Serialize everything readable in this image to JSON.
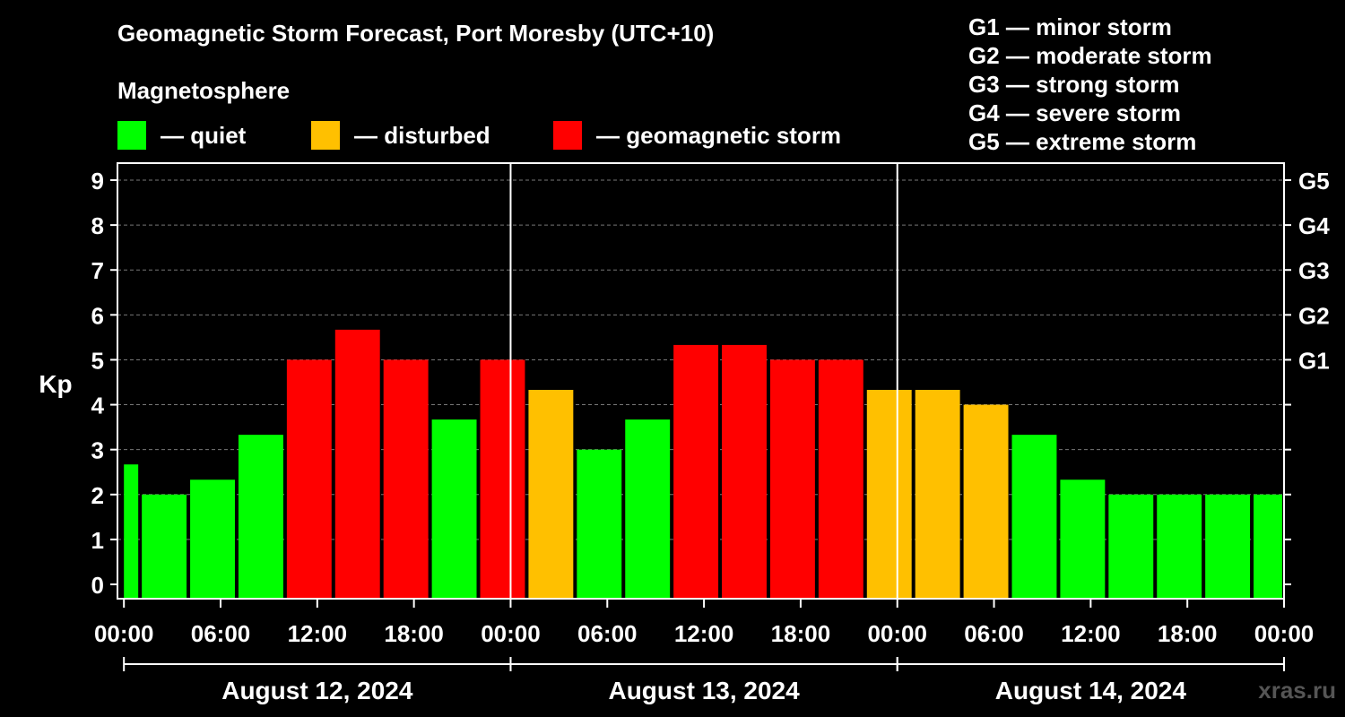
{
  "title": "Geomagnetic Storm Forecast, Port Moresby (UTC+10)",
  "legend": {
    "heading": "Magnetosphere",
    "items": [
      {
        "label": "— quiet",
        "color": "#00ff00"
      },
      {
        "label": "— disturbed",
        "color": "#ffc000"
      },
      {
        "label": "— geomagnetic storm",
        "color": "#ff0000"
      }
    ]
  },
  "g_scale": [
    "G1 — minor storm",
    "G2 — moderate storm",
    "G3 — strong storm",
    "G4 — severe storm",
    "G5 — extreme storm"
  ],
  "watermark": "xras.ru",
  "chart_data": {
    "type": "bar",
    "title": "Geomagnetic Storm Forecast, Port Moresby (UTC+10)",
    "ylabel": "Kp",
    "ylim": [
      0,
      9
    ],
    "yticks": [
      "0",
      "1",
      "2",
      "3",
      "4",
      "5",
      "6",
      "7",
      "8",
      "9"
    ],
    "right_axis": [
      {
        "kp": 5,
        "label": "G1"
      },
      {
        "kp": 6,
        "label": "G2"
      },
      {
        "kp": 7,
        "label": "G3"
      },
      {
        "kp": 8,
        "label": "G4"
      },
      {
        "kp": 9,
        "label": "G5"
      }
    ],
    "x_range_hours": [
      -0.4,
      72
    ],
    "xticks": [
      {
        "hour": 0,
        "label": "00:00"
      },
      {
        "hour": 6,
        "label": "06:00"
      },
      {
        "hour": 12,
        "label": "12:00"
      },
      {
        "hour": 18,
        "label": "18:00"
      },
      {
        "hour": 24,
        "label": "00:00"
      },
      {
        "hour": 30,
        "label": "06:00"
      },
      {
        "hour": 36,
        "label": "12:00"
      },
      {
        "hour": 42,
        "label": "18:00"
      },
      {
        "hour": 48,
        "label": "00:00"
      },
      {
        "hour": 54,
        "label": "06:00"
      },
      {
        "hour": 60,
        "label": "12:00"
      },
      {
        "hour": 66,
        "label": "18:00"
      },
      {
        "hour": 72,
        "label": "00:00"
      }
    ],
    "days": [
      {
        "label": "August 12, 2024",
        "start_hour": 0,
        "end_hour": 24
      },
      {
        "label": "August 13, 2024",
        "start_hour": 24,
        "end_hour": 48
      },
      {
        "label": "August 14, 2024",
        "start_hour": 48,
        "end_hour": 72
      }
    ],
    "grid": "dashed horizontal",
    "bars": [
      {
        "start_hour": 0,
        "end_hour": 1,
        "kp": 2.67,
        "status": "quiet"
      },
      {
        "start_hour": 1,
        "end_hour": 4,
        "kp": 2.0,
        "status": "quiet"
      },
      {
        "start_hour": 4,
        "end_hour": 7,
        "kp": 2.33,
        "status": "quiet"
      },
      {
        "start_hour": 7,
        "end_hour": 10,
        "kp": 3.33,
        "status": "quiet"
      },
      {
        "start_hour": 10,
        "end_hour": 13,
        "kp": 5.0,
        "status": "storm"
      },
      {
        "start_hour": 13,
        "end_hour": 16,
        "kp": 5.67,
        "status": "storm"
      },
      {
        "start_hour": 16,
        "end_hour": 19,
        "kp": 5.0,
        "status": "storm"
      },
      {
        "start_hour": 19,
        "end_hour": 22,
        "kp": 3.67,
        "status": "quiet"
      },
      {
        "start_hour": 22,
        "end_hour": 25,
        "kp": 5.0,
        "status": "storm"
      },
      {
        "start_hour": 25,
        "end_hour": 28,
        "kp": 4.33,
        "status": "disturbed"
      },
      {
        "start_hour": 28,
        "end_hour": 31,
        "kp": 3.0,
        "status": "quiet"
      },
      {
        "start_hour": 31,
        "end_hour": 34,
        "kp": 3.67,
        "status": "quiet"
      },
      {
        "start_hour": 34,
        "end_hour": 37,
        "kp": 5.33,
        "status": "storm"
      },
      {
        "start_hour": 37,
        "end_hour": 40,
        "kp": 5.33,
        "status": "storm"
      },
      {
        "start_hour": 40,
        "end_hour": 43,
        "kp": 5.0,
        "status": "storm"
      },
      {
        "start_hour": 43,
        "end_hour": 46,
        "kp": 5.0,
        "status": "storm"
      },
      {
        "start_hour": 46,
        "end_hour": 49,
        "kp": 4.33,
        "status": "disturbed"
      },
      {
        "start_hour": 49,
        "end_hour": 52,
        "kp": 4.33,
        "status": "disturbed"
      },
      {
        "start_hour": 52,
        "end_hour": 55,
        "kp": 4.0,
        "status": "disturbed"
      },
      {
        "start_hour": 55,
        "end_hour": 58,
        "kp": 3.33,
        "status": "quiet"
      },
      {
        "start_hour": 58,
        "end_hour": 61,
        "kp": 2.33,
        "status": "quiet"
      },
      {
        "start_hour": 61,
        "end_hour": 64,
        "kp": 2.0,
        "status": "quiet"
      },
      {
        "start_hour": 64,
        "end_hour": 67,
        "kp": 2.0,
        "status": "quiet"
      },
      {
        "start_hour": 67,
        "end_hour": 70,
        "kp": 2.0,
        "status": "quiet"
      },
      {
        "start_hour": 70,
        "end_hour": 72,
        "kp": 2.0,
        "status": "quiet"
      }
    ],
    "colors": {
      "quiet": "#00ff00",
      "disturbed": "#ffc000",
      "storm": "#ff0000"
    }
  }
}
